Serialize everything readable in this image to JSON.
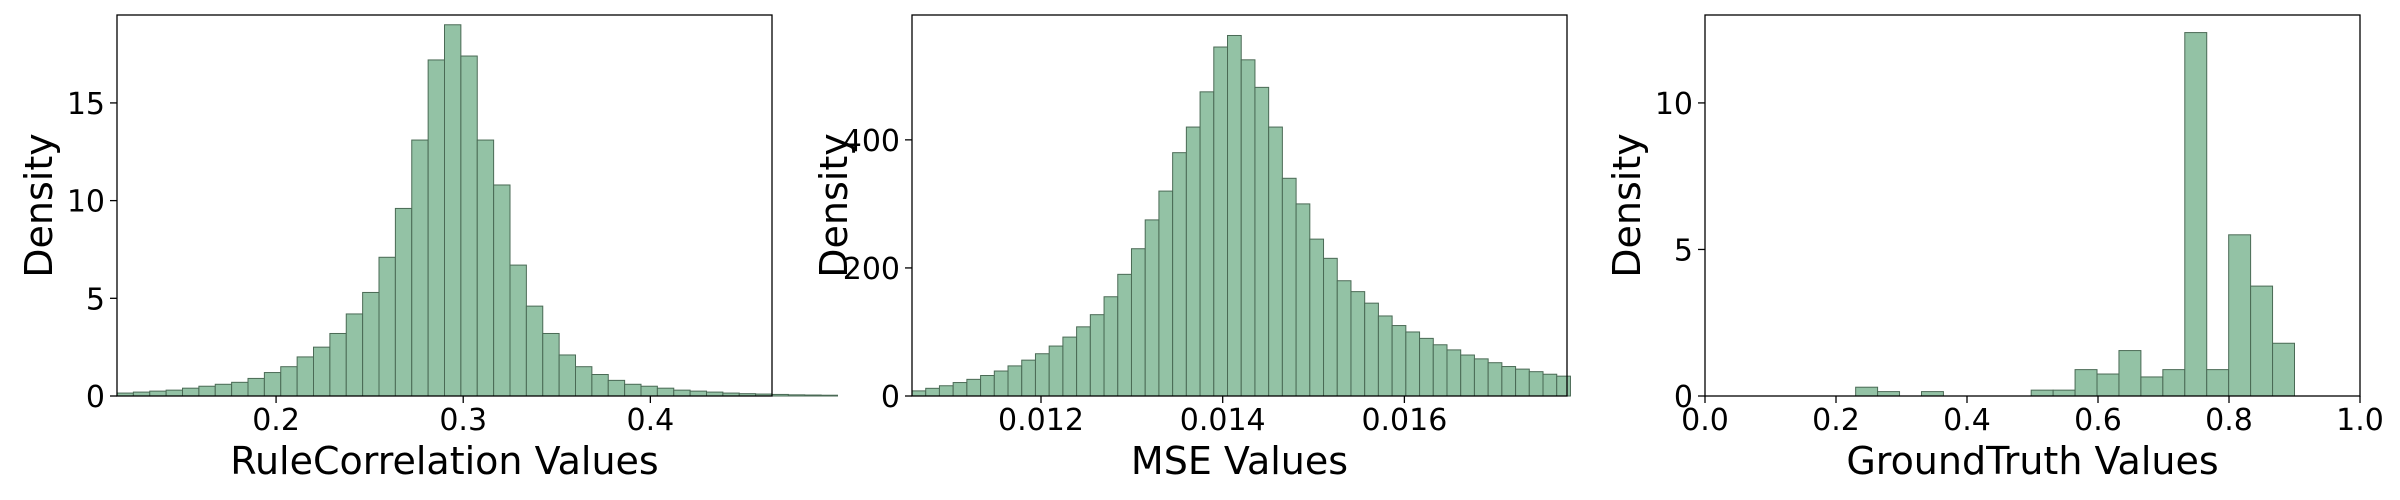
{
  "colors": {
    "bar_fill": "#93c2a5",
    "bar_edge": "#4a6a55",
    "axis": "#000000"
  },
  "chart_data": [
    {
      "type": "bar",
      "subtype": "histogram",
      "xlabel": "RuleCorrelation Values",
      "ylabel": "Density",
      "xlim": [
        0.115,
        0.465
      ],
      "ylim": [
        0,
        19.5
      ],
      "xticks": [
        0.2,
        0.3,
        0.4
      ],
      "xtick_labels": [
        "0.2",
        "0.3",
        "0.4"
      ],
      "yticks": [
        0,
        5,
        10,
        15
      ],
      "ytick_labels": [
        "0",
        "5",
        "10",
        "15"
      ],
      "bin_start": 0.115,
      "bin_width": 0.00875,
      "values": [
        0.15,
        0.2,
        0.25,
        0.3,
        0.4,
        0.5,
        0.6,
        0.7,
        0.9,
        1.2,
        1.5,
        2.0,
        2.5,
        3.2,
        4.2,
        5.3,
        7.1,
        9.6,
        13.1,
        17.2,
        19.0,
        17.4,
        13.1,
        10.8,
        6.7,
        4.6,
        3.2,
        2.1,
        1.5,
        1.1,
        0.8,
        0.6,
        0.5,
        0.4,
        0.3,
        0.25,
        0.2,
        0.15,
        0.12,
        0.1,
        0.08,
        0.06,
        0.05,
        0.04
      ]
    },
    {
      "type": "bar",
      "subtype": "histogram",
      "xlabel": "MSE Values",
      "ylabel": "Density",
      "xlim": [
        0.01058,
        0.01779
      ],
      "ylim": [
        0,
        595
      ],
      "xticks": [
        0.012,
        0.014,
        0.016
      ],
      "xtick_labels": [
        "0.012",
        "0.014",
        "0.016"
      ],
      "yticks": [
        0,
        200,
        400
      ],
      "ytick_labels": [
        "0",
        "200",
        "400"
      ],
      "bin_start": 0.01058,
      "bin_width": 0.000151,
      "values": [
        8,
        12,
        16,
        21,
        26,
        32,
        39,
        47,
        56,
        66,
        78,
        92,
        108,
        127,
        155,
        190,
        230,
        275,
        320,
        380,
        420,
        475,
        545,
        563,
        525,
        482,
        420,
        340,
        300,
        245,
        215,
        180,
        163,
        145,
        125,
        110,
        100,
        90,
        80,
        72,
        64,
        58,
        52,
        46,
        42,
        38,
        34,
        31
      ]
    },
    {
      "type": "bar",
      "subtype": "histogram",
      "xlabel": "GroundTruth Values",
      "ylabel": "Density",
      "xlim": [
        0.0,
        1.0
      ],
      "ylim": [
        0,
        13
      ],
      "xticks": [
        0.0,
        0.2,
        0.4,
        0.6,
        0.8,
        1.0
      ],
      "xtick_labels": [
        "0.0",
        "0.2",
        "0.4",
        "0.6",
        "0.8",
        "1.0"
      ],
      "yticks": [
        0,
        5,
        10
      ],
      "ytick_labels": [
        "0",
        "5",
        "10"
      ],
      "bin_start": 0.23,
      "bin_width": 0.0335,
      "values": [
        0.3,
        0.15,
        0,
        0.15,
        0,
        0,
        0,
        0,
        0.2,
        0.2,
        0.9,
        0.75,
        1.55,
        0.65,
        0.9,
        12.4,
        0.9,
        5.5,
        3.75,
        1.8
      ]
    }
  ]
}
